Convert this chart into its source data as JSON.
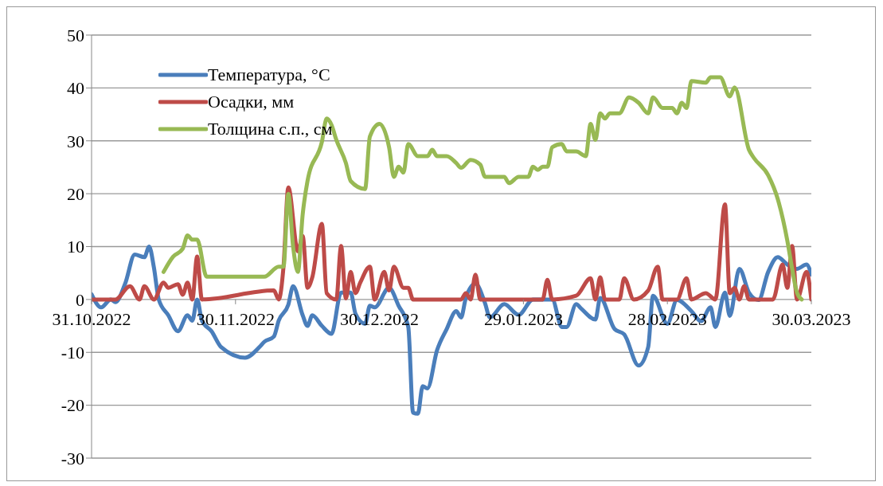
{
  "chart_data": {
    "type": "line",
    "ylim": [
      -30,
      50
    ],
    "yticks": [
      -30,
      -20,
      -10,
      0,
      10,
      20,
      30,
      40,
      50
    ],
    "xlim": [
      "2022-10-31",
      "2023-03-30"
    ],
    "xticks": [
      {
        "value": "2022-10-31",
        "label": "31.10.2022"
      },
      {
        "value": "2022-11-30",
        "label": "30.11.2022"
      },
      {
        "value": "2022-12-30",
        "label": "30.12.2022"
      },
      {
        "value": "2023-01-29",
        "label": "29.01.2023"
      },
      {
        "value": "2023-02-28",
        "label": "28.02.2023"
      },
      {
        "value": "2023-03-30",
        "label": "30.03.2023"
      }
    ],
    "grid": "y",
    "legend": "top left",
    "marker": "none",
    "line_style": "solid",
    "series": [
      {
        "name": "Температура, °C",
        "color": "#4a7ebb",
        "x": [
          "2022-10-31",
          "2022-11-02",
          "2022-11-04",
          "2022-11-05",
          "2022-11-07",
          "2022-11-09",
          "2022-11-11",
          "2022-11-12",
          "2022-11-13",
          "2022-11-14",
          "2022-11-16",
          "2022-11-18",
          "2022-11-20",
          "2022-11-21",
          "2022-11-22",
          "2022-11-23",
          "2022-11-25",
          "2022-11-27",
          "2022-12-02",
          "2022-12-05",
          "2022-12-06",
          "2022-12-08",
          "2022-12-09",
          "2022-12-11",
          "2022-12-12",
          "2022-12-14",
          "2022-12-15",
          "2022-12-16",
          "2022-12-18",
          "2022-12-20",
          "2022-12-22",
          "2022-12-24",
          "2022-12-25",
          "2022-12-27",
          "2022-12-28",
          "2022-12-29",
          "2023-01-01",
          "2023-01-03",
          "2023-01-05",
          "2023-01-06",
          "2023-01-07",
          "2023-01-08",
          "2023-01-09",
          "2023-01-11",
          "2023-01-13",
          "2023-01-15",
          "2023-01-16",
          "2023-01-17",
          "2023-01-19",
          "2023-01-21",
          "2023-01-22",
          "2023-01-25",
          "2023-01-28",
          "2023-01-31",
          "2023-02-04",
          "2023-02-06",
          "2023-02-07",
          "2023-02-09",
          "2023-02-10",
          "2023-02-13",
          "2023-02-14",
          "2023-02-17",
          "2023-02-19",
          "2023-02-22",
          "2023-02-24",
          "2023-02-25",
          "2023-02-28",
          "2023-03-02",
          "2023-03-05",
          "2023-03-07",
          "2023-03-09",
          "2023-03-10",
          "2023-03-12",
          "2023-03-13",
          "2023-03-15",
          "2023-03-17",
          "2023-03-19",
          "2023-03-21",
          "2023-03-23",
          "2023-03-25",
          "2023-03-27",
          "2023-03-29",
          "2023-03-30"
        ],
        "values": [
          1,
          -1.5,
          0,
          -0.5,
          3,
          8.5,
          8,
          10,
          6,
          0,
          -3,
          -6,
          -3,
          -4,
          0,
          -4,
          -6,
          -9,
          -11,
          -9,
          -8,
          -7,
          -4,
          -1,
          2.5,
          -3,
          -5,
          -3,
          -5,
          -6.5,
          1.3,
          1.3,
          -2.7,
          -4.6,
          -1.2,
          -1.5,
          2.2,
          -1.2,
          -5.2,
          -21.4,
          -21.6,
          -16.4,
          -16.8,
          -9.6,
          -5.6,
          -2.2,
          -3.4,
          0.3,
          3,
          -0.7,
          -3.4,
          -0.9,
          -2.9,
          0,
          0,
          -5.2,
          -5.2,
          -0.9,
          -1.7,
          -3.8,
          0.3,
          -5.6,
          -6.6,
          -12.5,
          -9,
          0.7,
          -4.6,
          -0.1,
          -2.2,
          -4.1,
          -1.5,
          -5.2,
          1.3,
          -3.1,
          5.8,
          1.3,
          -0.1,
          5.2,
          8,
          6.6,
          5.8,
          6.6,
          4.7
        ]
      },
      {
        "name": "Осадки, мм",
        "color": "#be4b48",
        "x": [
          "2022-10-31",
          "2022-11-05",
          "2022-11-08",
          "2022-11-10",
          "2022-11-11",
          "2022-11-13",
          "2022-11-15",
          "2022-11-16",
          "2022-11-18",
          "2022-11-19",
          "2022-11-20",
          "2022-11-21",
          "2022-11-22",
          "2022-11-23",
          "2022-12-08",
          "2022-12-09",
          "2022-12-10",
          "2022-12-11",
          "2022-12-13",
          "2022-12-14",
          "2022-12-15",
          "2022-12-16",
          "2022-12-18",
          "2022-12-19",
          "2022-12-21",
          "2022-12-22",
          "2022-12-23",
          "2022-12-24",
          "2022-12-25",
          "2022-12-26",
          "2022-12-28",
          "2022-12-29",
          "2022-12-31",
          "2023-01-01",
          "2023-01-02",
          "2023-01-04",
          "2023-01-05",
          "2023-01-06",
          "2023-01-16",
          "2023-01-17",
          "2023-01-18",
          "2023-01-19",
          "2023-01-20",
          "2023-02-02",
          "2023-02-03",
          "2023-02-04",
          "2023-02-09",
          "2023-02-12",
          "2023-02-13",
          "2023-02-14",
          "2023-02-15",
          "2023-02-18",
          "2023-02-19",
          "2023-02-21",
          "2023-02-24",
          "2023-02-26",
          "2023-02-27",
          "2023-03-02",
          "2023-03-04",
          "2023-03-05",
          "2023-03-08",
          "2023-03-10",
          "2023-03-12",
          "2023-03-13",
          "2023-03-14",
          "2023-03-15",
          "2023-03-16",
          "2023-03-17",
          "2023-03-22",
          "2023-03-24",
          "2023-03-25",
          "2023-03-26",
          "2023-03-27",
          "2023-03-29",
          "2023-03-30"
        ],
        "values": [
          0,
          0,
          2.5,
          0,
          2.5,
          0,
          3.2,
          2.2,
          2.9,
          0.9,
          3.2,
          0,
          8.1,
          0,
          1.7,
          0,
          6.2,
          21.2,
          9.1,
          12,
          2.2,
          4.2,
          14.3,
          1.2,
          0,
          10.1,
          0.2,
          5.2,
          1.2,
          3.2,
          6.2,
          0,
          5.2,
          1.7,
          6.2,
          2.2,
          2.2,
          0,
          0,
          1.2,
          0,
          4.7,
          0,
          0,
          3.7,
          0,
          0.7,
          4,
          0,
          4.2,
          0,
          0,
          4,
          0,
          1.7,
          6.2,
          0,
          0,
          4,
          0,
          1.2,
          0,
          18,
          1.2,
          2.2,
          0,
          2.5,
          0,
          0,
          6.6,
          2.2,
          10.1,
          0,
          5.2,
          0
        ]
      },
      {
        "name": "Толщина с.п., см",
        "color": "#98b954",
        "x": [
          "2022-11-15",
          "2022-11-17",
          "2022-11-19",
          "2022-11-20",
          "2022-11-21",
          "2022-11-22",
          "2022-11-24",
          "2022-12-06",
          "2022-12-09",
          "2022-12-10",
          "2022-12-11",
          "2022-12-12",
          "2022-12-13",
          "2022-12-14",
          "2022-12-15",
          "2022-12-18",
          "2022-12-19",
          "2022-12-20",
          "2022-12-21",
          "2022-12-23",
          "2022-12-24",
          "2022-12-27",
          "2022-12-28",
          "2022-12-30",
          "2023-01-01",
          "2023-01-02",
          "2023-01-03",
          "2023-01-04",
          "2023-01-05",
          "2023-01-07",
          "2023-01-09",
          "2023-01-10",
          "2023-01-11",
          "2023-01-13",
          "2023-01-15",
          "2023-01-16",
          "2023-01-18",
          "2023-01-20",
          "2023-01-21",
          "2023-01-25",
          "2023-01-26",
          "2023-01-28",
          "2023-01-30",
          "2023-01-31",
          "2023-02-01",
          "2023-02-02",
          "2023-02-03",
          "2023-02-04",
          "2023-02-06",
          "2023-02-07",
          "2023-02-09",
          "2023-02-11",
          "2023-02-12",
          "2023-02-13",
          "2023-02-14",
          "2023-02-15",
          "2023-02-16",
          "2023-02-18",
          "2023-02-20",
          "2023-02-22",
          "2023-02-24",
          "2023-02-25",
          "2023-02-27",
          "2023-03-01",
          "2023-03-02",
          "2023-03-03",
          "2023-03-04",
          "2023-03-05",
          "2023-03-08",
          "2023-03-09",
          "2023-03-11",
          "2023-03-13",
          "2023-03-14",
          "2023-03-17",
          "2023-03-18",
          "2023-03-21",
          "2023-03-23",
          "2023-03-25",
          "2023-03-26",
          "2023-03-27",
          "2023-03-28"
        ],
        "values": [
          5.2,
          8.1,
          9.6,
          12.1,
          11.3,
          11.3,
          4.3,
          4.3,
          6.2,
          6.2,
          20,
          10,
          5.2,
          16.1,
          22.4,
          29.8,
          34.2,
          33,
          30.2,
          25.8,
          22.4,
          20.9,
          30.8,
          33.2,
          28.8,
          23.2,
          25.1,
          24,
          29.4,
          27.1,
          27.1,
          28.3,
          27.1,
          27.1,
          25.8,
          24.9,
          26.4,
          25.5,
          23.2,
          23.2,
          22,
          23.2,
          23.2,
          25.1,
          24.5,
          25.1,
          25.1,
          28.8,
          29.4,
          28,
          28,
          27.1,
          33.2,
          30.2,
          35.2,
          34.2,
          35.2,
          35.2,
          38.2,
          37.2,
          35.2,
          38.2,
          36.2,
          36.2,
          35.2,
          37.2,
          36.2,
          41.3,
          41,
          42,
          42,
          38.4,
          40.1,
          28.3,
          26.8,
          23.5,
          19,
          11.1,
          5.8,
          1.3,
          0
        ]
      }
    ]
  }
}
